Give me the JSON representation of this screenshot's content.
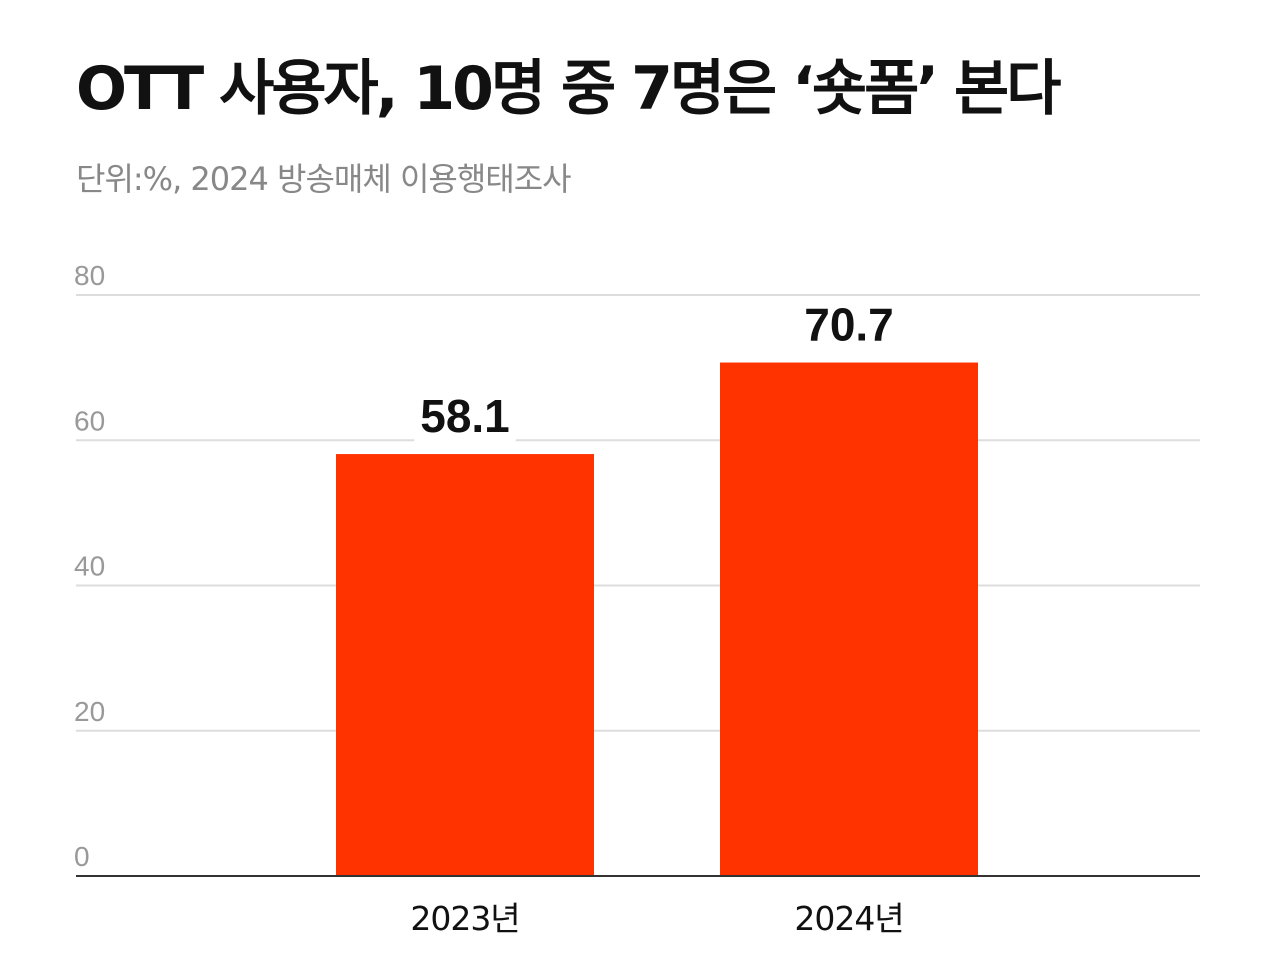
{
  "header": {
    "title": "OTT 사용자, 10명 중 7명은 ‘숏폼’ 본다",
    "subtitle": "단위:%, 2024 방송매체 이용행태조사"
  },
  "colors": {
    "bar": "#ff3300",
    "grid": "#dddddd",
    "axis": "#333333"
  },
  "chart_data": {
    "type": "bar",
    "title": "OTT 사용자, 10명 중 7명은 ‘숏폼’ 본다",
    "subtitle": "단위:%, 2024 방송매체 이용행태조사",
    "categories": [
      "2023년",
      "2024년"
    ],
    "values": [
      58.1,
      70.7
    ],
    "value_labels": [
      "58.1",
      "70.7"
    ],
    "yticks": [
      0,
      20,
      40,
      60,
      80
    ],
    "ylim": [
      0,
      80
    ],
    "xlabel": "",
    "ylabel": "",
    "grid": true,
    "legend": "none"
  }
}
